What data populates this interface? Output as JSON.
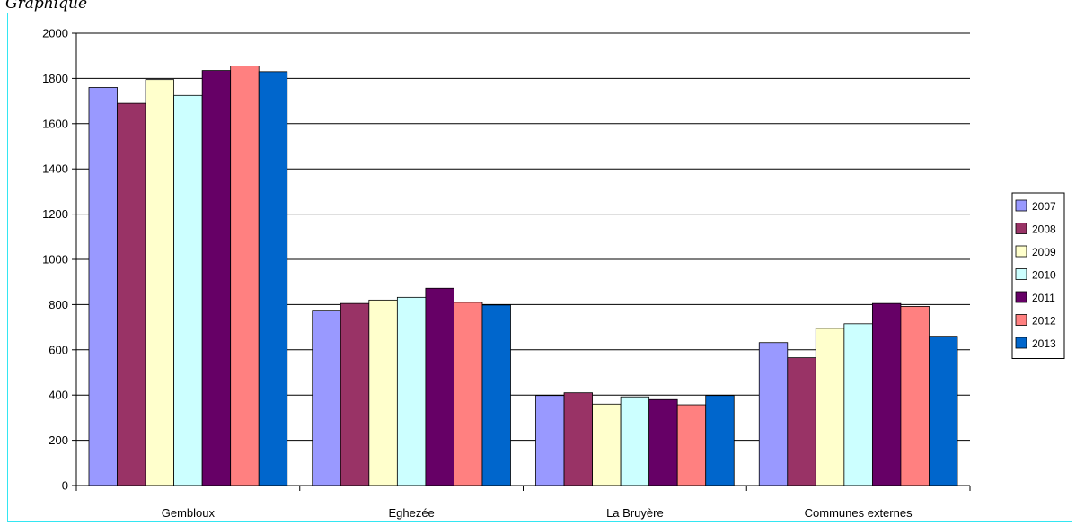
{
  "header": {
    "label": "Graphique"
  },
  "chart_data": {
    "type": "bar",
    "title": "",
    "xlabel": "",
    "ylabel": "",
    "ylim": [
      0,
      2000
    ],
    "yticks": [
      0,
      200,
      400,
      600,
      800,
      1000,
      1200,
      1400,
      1600,
      1800,
      2000
    ],
    "grid": true,
    "legend_position": "right",
    "categories": [
      "Gembloux",
      "Eghezée",
      "La Bruyère",
      "Communes externes"
    ],
    "series": [
      {
        "name": "2007",
        "color": "#9999ff",
        "values": [
          1760,
          775,
          398,
          632
        ]
      },
      {
        "name": "2008",
        "color": "#993366",
        "values": [
          1690,
          805,
          410,
          565
        ]
      },
      {
        "name": "2009",
        "color": "#ffffcc",
        "values": [
          1795,
          820,
          360,
          695
        ]
      },
      {
        "name": "2010",
        "color": "#ccffff",
        "values": [
          1725,
          832,
          392,
          715
        ]
      },
      {
        "name": "2011",
        "color": "#660066",
        "values": [
          1835,
          872,
          380,
          805
        ]
      },
      {
        "name": "2012",
        "color": "#ff8080",
        "values": [
          1855,
          810,
          357,
          792
        ]
      },
      {
        "name": "2013",
        "color": "#0066cc",
        "values": [
          1830,
          798,
          398,
          660
        ]
      }
    ]
  }
}
